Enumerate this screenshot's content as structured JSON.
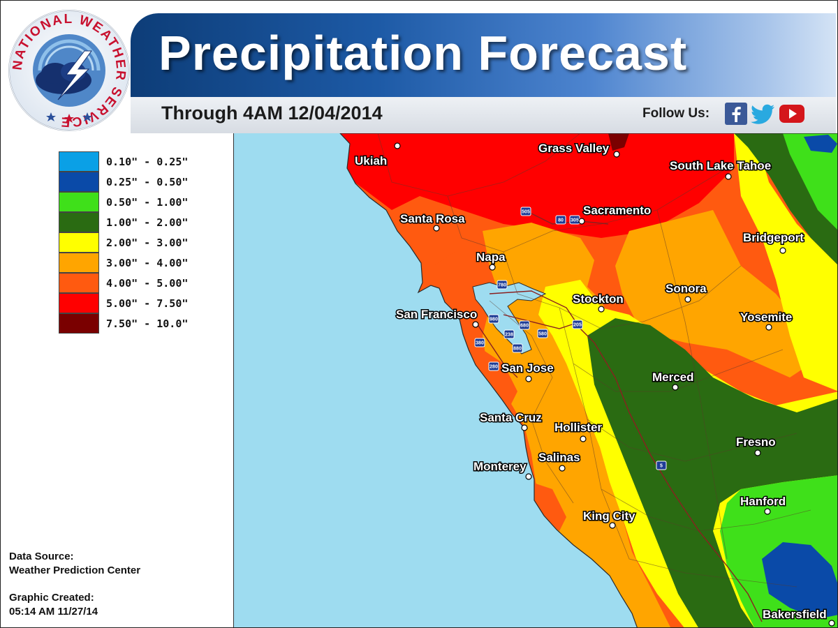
{
  "header": {
    "title": "Precipitation Forecast",
    "subtitle": "Through 4AM 12/04/2014",
    "follow_label": "Follow Us:",
    "logo_text": "NATIONAL WEATHER SERVICE",
    "social_icons": [
      "facebook-icon",
      "twitter-icon",
      "youtube-icon"
    ]
  },
  "legend": [
    {
      "label": "0.10\" - 0.25\"",
      "color": "#0aa0e6"
    },
    {
      "label": "0.25\" - 0.50\"",
      "color": "#0a4aa8"
    },
    {
      "label": "0.50\" - 1.00\"",
      "color": "#3fe01a"
    },
    {
      "label": "1.00\" - 2.00\"",
      "color": "#2a6b12"
    },
    {
      "label": "2.00\" - 3.00\"",
      "color": "#ffff00"
    },
    {
      "label": "3.00\" - 4.00\"",
      "color": "#ffa500"
    },
    {
      "label": "4.00\" - 5.00\"",
      "color": "#ff5a10"
    },
    {
      "label": "5.00\" - 7.50\"",
      "color": "#ff0000"
    },
    {
      "label": "7.50\" - 10.0\"",
      "color": "#7a0000"
    }
  ],
  "footer": {
    "source_label": "Data Source:",
    "source_value": "Weather Prediction Center",
    "created_label": "Graphic Created:",
    "created_value": "05:14 AM 11/27/14"
  },
  "map": {
    "ocean_color": "#9edcf0",
    "cities": [
      "Grass Valley",
      "Ukiah",
      "South Lake Tahoe",
      "Sacramento",
      "Santa Rosa",
      "Bridgeport",
      "Napa",
      "Sonora",
      "Stockton",
      "San Francisco",
      "Yosemite",
      "San Jose",
      "Merced",
      "Santa Cruz",
      "Hollister",
      "Fresno",
      "Monterey",
      "Salinas",
      "Hanford",
      "King City",
      "Bakersfield"
    ],
    "highway_shields": [
      "505",
      "80",
      "305",
      "780",
      "980",
      "680",
      "205",
      "238",
      "580",
      "380",
      "880",
      "280",
      "5"
    ]
  }
}
